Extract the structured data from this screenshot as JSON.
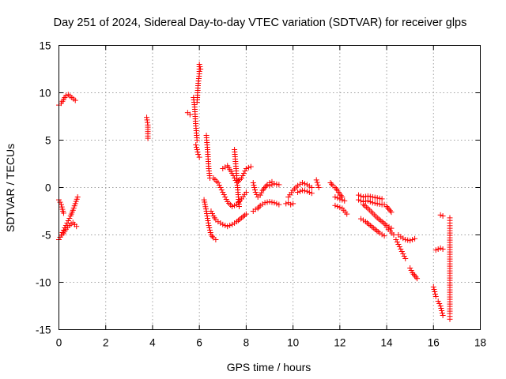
{
  "chart_data": {
    "type": "scatter",
    "title": "Day 251 of 2024, Sidereal Day-to-day VTEC variation (SDTVAR) for receiver glps",
    "xlabel": "GPS time / hours",
    "ylabel": "SDTVAR / TECUs",
    "xlim": [
      0,
      18
    ],
    "ylim": [
      -15,
      15
    ],
    "xticks": [
      0,
      2,
      4,
      6,
      8,
      10,
      12,
      14,
      16,
      18
    ],
    "yticks": [
      -15,
      -10,
      -5,
      0,
      5,
      10,
      15
    ],
    "xtick_labels": [
      "0",
      "2",
      "4",
      "6",
      "8",
      "10",
      "12",
      "14",
      "16",
      "18"
    ],
    "ytick_labels": [
      "-15",
      "-10",
      "-5",
      "0",
      "5",
      "10",
      "15"
    ],
    "grid": true,
    "marker": "+",
    "series_color": "#ff0000",
    "segments": [
      {
        "x": [
          0.0,
          0.1,
          0.2,
          0.3,
          0.4,
          0.55,
          0.7
        ],
        "y": [
          8.7,
          8.9,
          9.3,
          9.7,
          9.8,
          9.5,
          9.2
        ]
      },
      {
        "x": [
          0.0,
          0.1,
          0.15,
          0.2
        ],
        "y": [
          -1.3,
          -1.8,
          -2.3,
          -2.7
        ]
      },
      {
        "x": [
          0.0,
          0.1,
          0.2,
          0.3,
          0.4,
          0.5,
          0.6,
          0.7,
          0.8
        ],
        "y": [
          -5.5,
          -5.0,
          -4.5,
          -4.0,
          -3.5,
          -3.0,
          -2.4,
          -1.7,
          -1.0
        ]
      },
      {
        "x": [
          0.15,
          0.3,
          0.45,
          0.6,
          0.75
        ],
        "y": [
          -5.0,
          -4.4,
          -4.0,
          -3.7,
          -4.1
        ]
      },
      {
        "x": [
          3.75,
          3.8,
          3.8
        ],
        "y": [
          7.4,
          6.6,
          5.2
        ]
      },
      {
        "x": [
          5.5,
          5.6
        ],
        "y": [
          7.9,
          7.7
        ]
      },
      {
        "x": [
          5.75,
          5.8,
          5.85,
          5.9
        ],
        "y": [
          9.5,
          8.5,
          6.5,
          5.0
        ]
      },
      {
        "x": [
          5.9,
          5.95,
          6.0,
          6.0,
          6.05
        ],
        "y": [
          9.0,
          11.0,
          12.0,
          13.0,
          12.5
        ]
      },
      {
        "x": [
          5.85,
          5.9,
          5.95,
          6.0
        ],
        "y": [
          4.5,
          4.0,
          3.5,
          3.2
        ]
      },
      {
        "x": [
          6.3,
          6.35,
          6.4,
          6.45
        ],
        "y": [
          5.5,
          4.0,
          2.0,
          1.0
        ]
      },
      {
        "x": [
          6.2,
          6.3,
          6.4,
          6.5,
          6.6,
          6.7
        ],
        "y": [
          -1.3,
          -2.5,
          -4.0,
          -5.0,
          -5.3,
          -5.5
        ]
      },
      {
        "x": [
          6.5,
          6.6,
          6.7,
          6.8,
          7.0,
          7.2,
          7.4,
          7.6,
          7.8,
          8.0
        ],
        "y": [
          -2.5,
          -3.0,
          -3.4,
          -3.6,
          -3.9,
          -4.1,
          -3.9,
          -3.6,
          -3.2,
          -2.8
        ]
      },
      {
        "x": [
          6.6,
          6.8,
          7.0,
          7.2,
          7.4,
          7.6,
          7.8,
          8.0
        ],
        "y": [
          1.0,
          0.5,
          -0.5,
          -1.5,
          -2.0,
          -1.8,
          -1.2,
          -0.5
        ]
      },
      {
        "x": [
          7.0,
          7.2,
          7.4,
          7.6,
          7.8,
          8.0,
          8.2
        ],
        "y": [
          2.0,
          2.3,
          1.5,
          0.5,
          1.0,
          2.0,
          2.2
        ]
      },
      {
        "x": [
          7.5,
          7.55,
          7.6,
          7.65,
          7.7
        ],
        "y": [
          4.0,
          2.5,
          1.0,
          -0.5,
          -2.0
        ]
      },
      {
        "x": [
          8.3,
          8.4,
          8.5,
          8.6,
          8.7,
          8.8,
          8.9,
          9.0,
          9.1
        ],
        "y": [
          0.5,
          -0.5,
          -1.0,
          -0.8,
          -0.3,
          0.0,
          0.3,
          0.5,
          0.6
        ]
      },
      {
        "x": [
          8.3,
          8.4,
          8.5,
          8.6,
          8.8,
          9.0,
          9.2,
          9.4
        ],
        "y": [
          -2.5,
          -2.3,
          -2.2,
          -1.9,
          -1.6,
          -1.5,
          -1.6,
          -1.8
        ]
      },
      {
        "x": [
          9.0,
          9.2,
          9.4
        ],
        "y": [
          0.2,
          0.4,
          0.3
        ]
      },
      {
        "x": [
          9.8,
          10.0,
          10.2,
          10.4,
          10.6,
          10.8
        ],
        "y": [
          -1.0,
          -0.3,
          0.2,
          0.5,
          0.3,
          0.0
        ]
      },
      {
        "x": [
          9.7,
          9.8,
          9.9,
          10.0
        ],
        "y": [
          -1.7,
          -1.6,
          -1.8,
          -1.7
        ]
      },
      {
        "x": [
          10.2,
          10.4,
          10.6,
          10.8
        ],
        "y": [
          -0.5,
          -0.3,
          -0.4,
          -0.6
        ]
      },
      {
        "x": [
          11.0,
          11.1
        ],
        "y": [
          0.8,
          0.0
        ]
      },
      {
        "x": [
          11.6,
          11.7,
          11.8,
          11.9,
          12.0,
          12.1
        ],
        "y": [
          0.5,
          0.2,
          0.0,
          -0.3,
          -0.7,
          -1.0
        ]
      },
      {
        "x": [
          11.8,
          11.9,
          12.0,
          12.1,
          12.3
        ],
        "y": [
          -1.9,
          -2.0,
          -2.1,
          -2.2,
          -2.8
        ]
      },
      {
        "x": [
          11.8,
          12.0,
          12.2
        ],
        "y": [
          -1.0,
          -1.2,
          -1.4
        ]
      },
      {
        "x": [
          12.8,
          13.0,
          13.2,
          13.4,
          13.6,
          13.8
        ],
        "y": [
          -0.8,
          -1.0,
          -0.9,
          -1.0,
          -1.1,
          -1.2
        ]
      },
      {
        "x": [
          12.8,
          13.0,
          13.2,
          13.4,
          13.6,
          13.8
        ],
        "y": [
          -1.3,
          -1.5,
          -1.4,
          -1.6,
          -1.7,
          -1.8
        ]
      },
      {
        "x": [
          13.0,
          13.2,
          13.4,
          13.6,
          13.8,
          14.0,
          14.2
        ],
        "y": [
          -1.8,
          -2.2,
          -2.7,
          -3.2,
          -3.6,
          -4.0,
          -4.3
        ]
      },
      {
        "x": [
          12.9,
          13.1,
          13.3,
          13.5,
          13.7,
          13.9
        ],
        "y": [
          -3.3,
          -3.6,
          -4.0,
          -4.4,
          -4.8,
          -5.1
        ]
      },
      {
        "x": [
          13.9,
          14.0,
          14.1,
          14.2
        ],
        "y": [
          -1.8,
          -2.0,
          -2.3,
          -2.6
        ]
      },
      {
        "x": [
          14.0,
          14.15,
          14.3
        ],
        "y": [
          -4.2,
          -4.6,
          -5.0
        ]
      },
      {
        "x": [
          14.4,
          14.5,
          14.6,
          14.7,
          14.8
        ],
        "y": [
          -5.5,
          -6.0,
          -6.5,
          -7.0,
          -7.5
        ]
      },
      {
        "x": [
          14.5,
          14.6,
          14.8,
          15.0,
          15.2
        ],
        "y": [
          -5.0,
          -5.2,
          -5.5,
          -5.6,
          -5.4
        ]
      },
      {
        "x": [
          15.0,
          15.1,
          15.2,
          15.3
        ],
        "y": [
          -8.5,
          -9.0,
          -9.3,
          -9.6
        ]
      },
      {
        "x": [
          16.0,
          16.1
        ],
        "y": [
          -10.5,
          -11.5
        ]
      },
      {
        "x": [
          16.1,
          16.2,
          16.3,
          16.4
        ],
        "y": [
          -6.6,
          -6.5,
          -6.4,
          -6.5
        ]
      },
      {
        "x": [
          16.2,
          16.3,
          16.4
        ],
        "y": [
          -12.0,
          -12.5,
          -13.5
        ]
      },
      {
        "x": [
          16.3,
          16.4
        ],
        "y": [
          -2.9,
          -3.0
        ]
      },
      {
        "x": [
          16.7,
          16.7,
          16.7,
          16.7
        ],
        "y": [
          -3.2,
          -4.3,
          -13.3,
          -13.9
        ]
      }
    ]
  }
}
